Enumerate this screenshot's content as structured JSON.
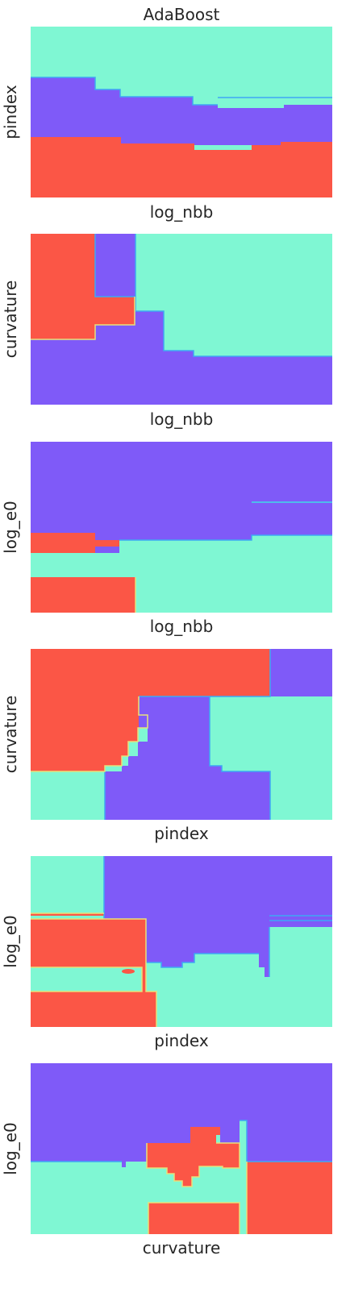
{
  "title": "AdaBoost",
  "colors": {
    "class_purple": "#7f5af8",
    "class_mint": "#7ff7d3",
    "class_red": "#fb5646",
    "boundary_blue": "#3fa7f4",
    "boundary_yellow": "#e7e17a"
  },
  "chart_data": [
    {
      "type": "heatmap",
      "title": "AdaBoost",
      "xlabel": "log_nbb",
      "ylabel": "pindex",
      "classes": [
        "class_mint",
        "class_purple",
        "class_red"
      ],
      "regions": [
        {
          "class": "class_mint",
          "desc": "top band"
        },
        {
          "class": "class_purple",
          "desc": "middle band"
        },
        {
          "class": "class_red",
          "desc": "bottom band"
        }
      ]
    },
    {
      "type": "heatmap",
      "xlabel": "log_nbb",
      "ylabel": "curvature",
      "classes": [
        "class_red",
        "class_purple",
        "class_mint"
      ]
    },
    {
      "type": "heatmap",
      "xlabel": "log_nbb",
      "ylabel": "log_e0",
      "classes": [
        "class_purple",
        "class_red",
        "class_mint"
      ]
    },
    {
      "type": "heatmap",
      "xlabel": "pindex",
      "ylabel": "curvature",
      "classes": [
        "class_red",
        "class_purple",
        "class_mint"
      ]
    },
    {
      "type": "heatmap",
      "xlabel": "pindex",
      "ylabel": "log_e0",
      "classes": [
        "class_mint",
        "class_purple",
        "class_red"
      ]
    },
    {
      "type": "heatmap",
      "xlabel": "curvature",
      "ylabel": "log_e0",
      "classes": [
        "class_purple",
        "class_mint",
        "class_red"
      ]
    }
  ]
}
